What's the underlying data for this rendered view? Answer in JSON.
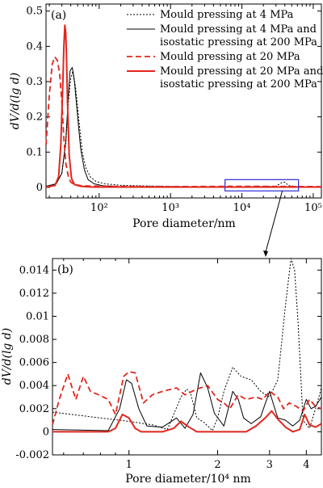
{
  "chart_data": [
    {
      "id": "a",
      "type": "line",
      "panel_label": "(a)",
      "xlabel": "Pore diameter/nm",
      "ylabel": "dV/d(lg d)",
      "xscale": "log",
      "xlim": [
        18,
        130000
      ],
      "ylim": [
        -0.03,
        0.52
      ],
      "xticks": [
        {
          "value": 100,
          "label": "10²"
        },
        {
          "value": 1000,
          "label": "10³"
        },
        {
          "value": 10000,
          "label": "10⁴"
        },
        {
          "value": 100000,
          "label": "10⁵"
        }
      ],
      "yticks": [
        {
          "value": 0,
          "label": "0"
        },
        {
          "value": 0.1,
          "label": "0.1"
        },
        {
          "value": 0.2,
          "label": "0.2"
        },
        {
          "value": 0.3,
          "label": "0.3"
        },
        {
          "value": 0.4,
          "label": "0.4"
        },
        {
          "value": 0.5,
          "label": "0.5"
        }
      ],
      "legend": {
        "placement": "top-right",
        "entries": [
          {
            "series": 0,
            "lines": [
              "Mould pressing at 4 MPa"
            ]
          },
          {
            "series": 1,
            "lines": [
              "Mould pressing at 4 MPa and",
              "isostatic pressing at 200 MPa"
            ]
          },
          {
            "series": 2,
            "lines": [
              "Mould pressing at 20 MPa"
            ]
          },
          {
            "series": 3,
            "lines": [
              "Mould pressing at 20 MPa and",
              "isostatic pressing at 200 MPa"
            ]
          }
        ]
      },
      "zoom_box": {
        "x": [
          5800,
          62000
        ],
        "y": [
          -0.01,
          0.022
        ],
        "color": "#2b2bd6"
      },
      "series": [
        {
          "name": "Mould pressing at 4 MPa",
          "color": "#000000",
          "style": "dotted",
          "width": 1,
          "x": [
            18,
            25,
            30,
            34,
            37,
            40,
            43,
            47,
            52,
            58,
            65,
            75,
            90,
            120,
            200,
            500,
            2000,
            10000,
            30000,
            35000,
            40000,
            45000,
            60000,
            130000
          ],
          "y": [
            0.003,
            0.01,
            0.04,
            0.12,
            0.24,
            0.31,
            0.33,
            0.28,
            0.19,
            0.1,
            0.055,
            0.03,
            0.017,
            0.01,
            0.006,
            0.004,
            0.002,
            0.002,
            0.003,
            0.012,
            0.015,
            0.005,
            0.002,
            0.001
          ]
        },
        {
          "name": "Mould pressing at 4 MPa and isostatic pressing at 200 MPa",
          "color": "#000000",
          "style": "solid",
          "width": 1,
          "x": [
            18,
            25,
            30,
            34,
            37,
            39,
            42,
            45,
            50,
            55,
            62,
            70,
            85,
            110,
            200,
            1000,
            10000,
            130000
          ],
          "y": [
            0.003,
            0.01,
            0.04,
            0.13,
            0.26,
            0.33,
            0.34,
            0.3,
            0.2,
            0.11,
            0.05,
            0.022,
            0.01,
            0.005,
            0.002,
            0.001,
            0.001,
            0.001
          ]
        },
        {
          "name": "Mould pressing at 20 MPa",
          "color": "#e0271e",
          "style": "dashed",
          "width": 1.8,
          "x": [
            18,
            20,
            22,
            24,
            26,
            28,
            30,
            32,
            34,
            37,
            40,
            45,
            55,
            70,
            150,
            1000,
            10000,
            130000
          ],
          "y": [
            0.12,
            0.26,
            0.35,
            0.37,
            0.36,
            0.32,
            0.24,
            0.14,
            0.07,
            0.03,
            0.015,
            0.008,
            0.005,
            0.004,
            0.003,
            0.002,
            0.003,
            0.002
          ]
        },
        {
          "name": "Mould pressing at 20 MPa and isostatic pressing at 200 MPa",
          "color": "#e0271e",
          "style": "solid",
          "width": 2,
          "x": [
            18,
            24,
            27,
            29,
            31,
            32,
            33,
            34,
            35,
            36,
            38,
            41,
            45,
            55,
            80,
            300,
            10000,
            130000
          ],
          "y": [
            0.001,
            0.005,
            0.03,
            0.12,
            0.3,
            0.4,
            0.46,
            0.44,
            0.36,
            0.24,
            0.09,
            0.025,
            0.008,
            0.003,
            0.001,
            0.001,
            0.001,
            0.001
          ]
        }
      ]
    },
    {
      "id": "b",
      "type": "line",
      "panel_label": "(b)",
      "xlabel": "Pore diameter/10⁴ nm",
      "ylabel": "dV/d(lg d)",
      "xscale": "log",
      "xlim": [
        0.55,
        4.5
      ],
      "ylim": [
        -0.002,
        0.015
      ],
      "xticks": [
        {
          "value": 1,
          "label": "1"
        },
        {
          "value": 2,
          "label": "2"
        },
        {
          "value": 3,
          "label": "3"
        },
        {
          "value": 4,
          "label": "4"
        }
      ],
      "yticks": [
        {
          "value": -0.002,
          "label": "-0.002"
        },
        {
          "value": 0,
          "label": "0"
        },
        {
          "value": 0.002,
          "label": "0.002"
        },
        {
          "value": 0.004,
          "label": "0.004"
        },
        {
          "value": 0.006,
          "label": "0.006"
        },
        {
          "value": 0.008,
          "label": "0.008"
        },
        {
          "value": 0.01,
          "label": "0.01"
        },
        {
          "value": 0.012,
          "label": "0.012"
        },
        {
          "value": 0.014,
          "label": "0.014"
        }
      ],
      "series": [
        {
          "name": "Mould pressing at 4 MPa",
          "color": "#000000",
          "style": "dotted",
          "width": 1,
          "x": [
            0.55,
            0.8,
            1.0,
            1.2,
            1.35,
            1.5,
            1.57,
            1.62,
            1.7,
            1.8,
            1.92,
            2.0,
            2.1,
            2.25,
            2.4,
            2.6,
            2.8,
            3.0,
            3.2,
            3.4,
            3.55,
            3.65,
            3.75,
            3.9,
            4.1,
            4.3,
            4.5
          ],
          "y": [
            0.0017,
            0.0012,
            0.0009,
            0.0006,
            0.0002,
            0.003,
            0.0037,
            0.0033,
            0.0012,
            0.0008,
            0.0001,
            0.0012,
            0.0035,
            0.0056,
            0.0048,
            0.0045,
            0.0035,
            0.003,
            0.0045,
            0.011,
            0.015,
            0.014,
            0.0095,
            0.001,
            0.0003,
            0.002,
            0.0038
          ]
        },
        {
          "name": "Mould pressing at 4 MPa and isostatic pressing at 200 MPa",
          "color": "#000000",
          "style": "solid",
          "width": 1,
          "x": [
            0.55,
            0.85,
            0.93,
            0.98,
            1.02,
            1.08,
            1.15,
            1.3,
            1.45,
            1.55,
            1.65,
            1.75,
            1.85,
            1.95,
            2.1,
            2.25,
            2.35,
            2.45,
            2.6,
            2.8,
            3.0,
            3.1,
            3.2,
            3.4,
            3.6,
            3.8,
            4.0,
            4.15,
            4.3,
            4.5
          ],
          "y": [
            0.0002,
            0.0001,
            0.002,
            0.0045,
            0.0042,
            0.002,
            0.0005,
            0.0004,
            0.0012,
            0.0003,
            0.0015,
            0.0051,
            0.0038,
            0.0016,
            0.0005,
            0.0035,
            0.0028,
            0.0012,
            0.0007,
            0.0013,
            0.0035,
            0.0023,
            0.0012,
            0.001,
            0.0005,
            0.001,
            0.0028,
            0.002,
            0.0022,
            0.003
          ]
        },
        {
          "name": "Mould pressing at 20 MPa",
          "color": "#e0271e",
          "style": "dashed",
          "width": 1.8,
          "x": [
            0.55,
            0.58,
            0.62,
            0.66,
            0.7,
            0.74,
            0.79,
            0.85,
            0.9,
            0.96,
            1.0,
            1.05,
            1.12,
            1.2,
            1.3,
            1.45,
            1.55,
            1.7,
            1.85,
            2.0,
            2.1,
            2.2,
            2.35,
            2.5,
            2.7,
            2.85,
            3.0,
            3.2,
            3.35,
            3.5,
            3.7,
            3.9,
            4.1,
            4.3,
            4.5
          ],
          "y": [
            0.0006,
            0.0028,
            0.005,
            0.0028,
            0.0048,
            0.0035,
            0.0032,
            0.0028,
            0.0015,
            0.0048,
            0.0052,
            0.0051,
            0.0025,
            0.0032,
            0.0035,
            0.0038,
            0.0032,
            0.0037,
            0.004,
            0.0028,
            0.0025,
            0.002,
            0.0032,
            0.0028,
            0.003,
            0.0028,
            0.0035,
            0.003,
            0.002,
            0.0025,
            0.0022,
            0.0018,
            0.0028,
            0.0022,
            0.002
          ]
        },
        {
          "name": "Mould pressing at 20 MPa and isostatic pressing at 200 MPa",
          "color": "#e0271e",
          "style": "solid",
          "width": 2,
          "x": [
            0.55,
            0.85,
            0.9,
            0.95,
            1.0,
            1.05,
            1.1,
            1.3,
            1.42,
            1.5,
            1.6,
            1.7,
            1.8,
            2.0,
            2.3,
            2.5,
            2.7,
            2.9,
            3.05,
            3.2,
            3.4,
            3.6,
            3.8,
            3.95,
            4.1,
            4.3,
            4.5
          ],
          "y": [
            0,
            0,
            0.0003,
            0.0015,
            0.0012,
            0.0003,
            0,
            0,
            0.0003,
            0.0009,
            0.0004,
            0,
            0,
            0,
            0,
            0,
            0.0005,
            0.0012,
            0.0018,
            0.0011,
            0.0004,
            0,
            0.0002,
            0.0015,
            0.0006,
            0.0004,
            0.0007
          ]
        }
      ]
    }
  ]
}
